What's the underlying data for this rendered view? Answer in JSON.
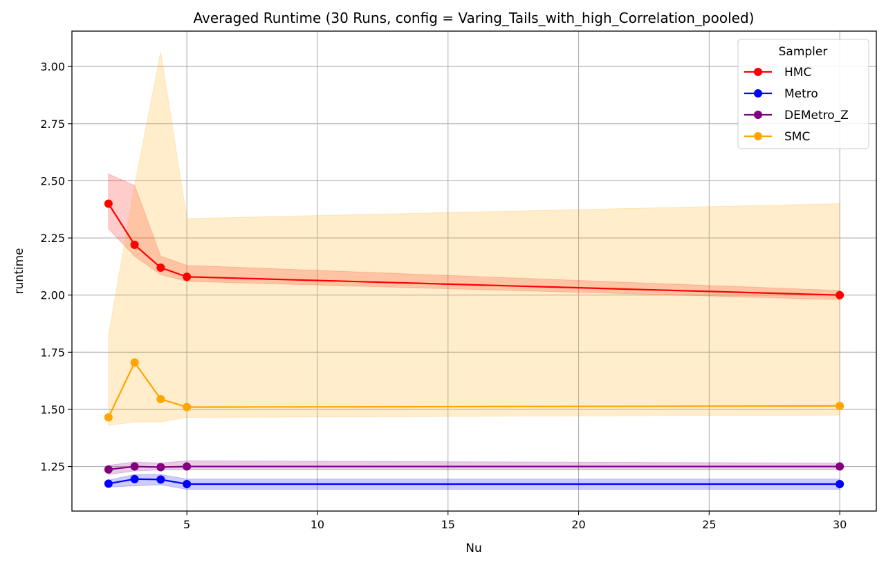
{
  "chart_data": {
    "type": "line",
    "title": "Averaged Runtime (30 Runs, config = Varing_Tails_with_high_Correlation_pooled)",
    "xlabel": "Nu",
    "ylabel": "runtime",
    "xlim": [
      0.6,
      31.4
    ],
    "ylim": [
      1.055,
      3.155
    ],
    "xticks": [
      5,
      10,
      15,
      20,
      25,
      30
    ],
    "yticks": [
      1.25,
      1.5,
      1.75,
      2.0,
      2.25,
      2.5,
      2.75,
      3.0
    ],
    "xtick_labels": [
      "5",
      "10",
      "15",
      "20",
      "25",
      "30"
    ],
    "ytick_labels": [
      "1.25",
      "1.50",
      "1.75",
      "2.00",
      "2.25",
      "2.50",
      "2.75",
      "3.00"
    ],
    "grid": true,
    "legend": {
      "title": "Sampler",
      "position": "top-right"
    },
    "x": [
      2,
      3,
      4,
      5,
      30
    ],
    "series": [
      {
        "name": "HMC",
        "color": "#ff0000",
        "values": [
          2.4,
          2.22,
          2.12,
          2.08,
          2.0
        ],
        "band_low": [
          2.29,
          2.17,
          2.09,
          2.06,
          1.98
        ],
        "band_high": [
          2.53,
          2.48,
          2.17,
          2.13,
          2.02
        ]
      },
      {
        "name": "Metro",
        "color": "#0000ff",
        "values": [
          1.175,
          1.195,
          1.193,
          1.173,
          1.173
        ],
        "band_low": [
          1.16,
          1.165,
          1.17,
          1.15,
          1.15
        ],
        "band_high": [
          1.19,
          1.215,
          1.215,
          1.195,
          1.195
        ]
      },
      {
        "name": "DEMetro_Z",
        "color": "#800080",
        "values": [
          1.237,
          1.25,
          1.247,
          1.25,
          1.25
        ],
        "band_low": [
          1.215,
          1.23,
          1.235,
          1.235,
          1.235
        ],
        "band_high": [
          1.255,
          1.27,
          1.265,
          1.275,
          1.265
        ]
      },
      {
        "name": "SMC",
        "color": "#ffa500",
        "values": [
          1.465,
          1.705,
          1.545,
          1.51,
          1.515
        ],
        "band_low": [
          1.43,
          1.445,
          1.445,
          1.465,
          1.475
        ],
        "band_high": [
          1.825,
          2.48,
          3.065,
          2.335,
          2.4
        ]
      }
    ]
  }
}
